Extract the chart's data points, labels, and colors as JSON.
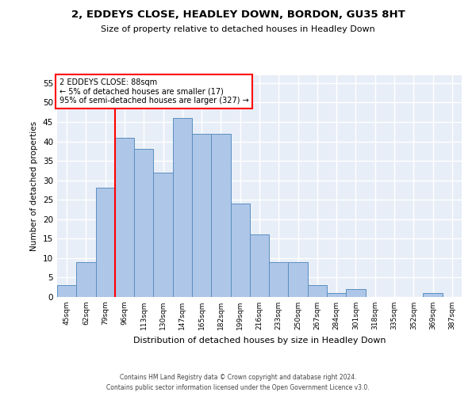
{
  "title1": "2, EDDEYS CLOSE, HEADLEY DOWN, BORDON, GU35 8HT",
  "title2": "Size of property relative to detached houses in Headley Down",
  "xlabel": "Distribution of detached houses by size in Headley Down",
  "ylabel": "Number of detached properties",
  "categories": [
    "45sqm",
    "62sqm",
    "79sqm",
    "96sqm",
    "113sqm",
    "130sqm",
    "147sqm",
    "165sqm",
    "182sqm",
    "199sqm",
    "216sqm",
    "233sqm",
    "250sqm",
    "267sqm",
    "284sqm",
    "301sqm",
    "318sqm",
    "335sqm",
    "352sqm",
    "369sqm",
    "387sqm"
  ],
  "values": [
    3,
    9,
    28,
    41,
    38,
    32,
    46,
    42,
    42,
    24,
    16,
    9,
    9,
    3,
    1,
    2,
    0,
    0,
    0,
    1,
    0
  ],
  "bar_color": "#aec6e8",
  "bar_edge_color": "#5a8fc0",
  "annotation_text_line1": "2 EDDEYS CLOSE: 88sqm",
  "annotation_text_line2": "← 5% of detached houses are smaller (17)",
  "annotation_text_line3": "95% of semi-detached houses are larger (327) →",
  "annotation_box_color": "white",
  "annotation_box_edge_color": "red",
  "vline_color": "red",
  "vline_x_index": 2.5,
  "ylim": [
    0,
    57
  ],
  "yticks": [
    0,
    5,
    10,
    15,
    20,
    25,
    30,
    35,
    40,
    45,
    50,
    55
  ],
  "bg_color": "#e8eef7",
  "grid_color": "white",
  "footer1": "Contains HM Land Registry data © Crown copyright and database right 2024.",
  "footer2": "Contains public sector information licensed under the Open Government Licence v3.0."
}
